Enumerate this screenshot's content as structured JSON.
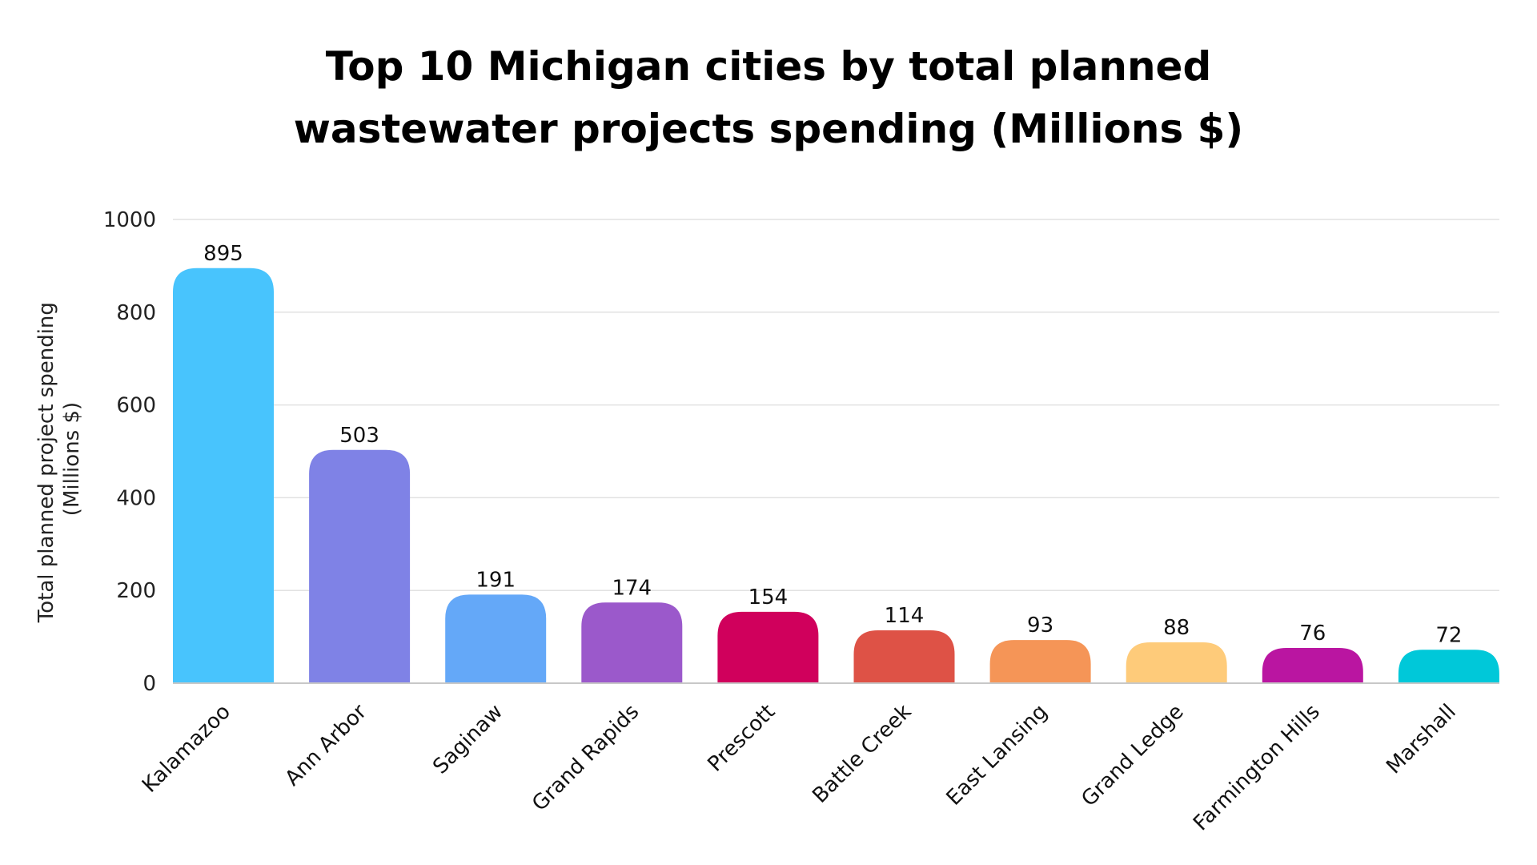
{
  "chart_data": {
    "type": "bar",
    "title_lines": [
      "Top 10 Michigan cities by total planned",
      "wastewater projects spending (Millions $)"
    ],
    "title": "Top 10 Michigan cities by total planned wastewater projects spending (Millions $)",
    "xlabel": "",
    "ylabel_lines": [
      "Total planned project spending",
      "(Millions $)"
    ],
    "ylim": [
      0,
      1000
    ],
    "yticks": [
      0,
      200,
      400,
      600,
      800,
      1000
    ],
    "grid": true,
    "categories": [
      "Kalamazoo",
      "Ann Arbor",
      "Saginaw",
      "Grand Rapids",
      "Prescott",
      "Battle Creek",
      "East Lansing",
      "Grand Ledge",
      "Farmington Hills",
      "Marshall"
    ],
    "values": [
      895,
      503,
      191,
      174,
      154,
      114,
      93,
      88,
      76,
      72
    ],
    "colors": [
      "#48C4FD",
      "#7F82E6",
      "#64A8F8",
      "#9B59CB",
      "#D0005C",
      "#DE5246",
      "#F59557",
      "#FECB7A",
      "#BA15A1",
      "#00C8D9"
    ],
    "data_labels": true,
    "legend": "none"
  }
}
